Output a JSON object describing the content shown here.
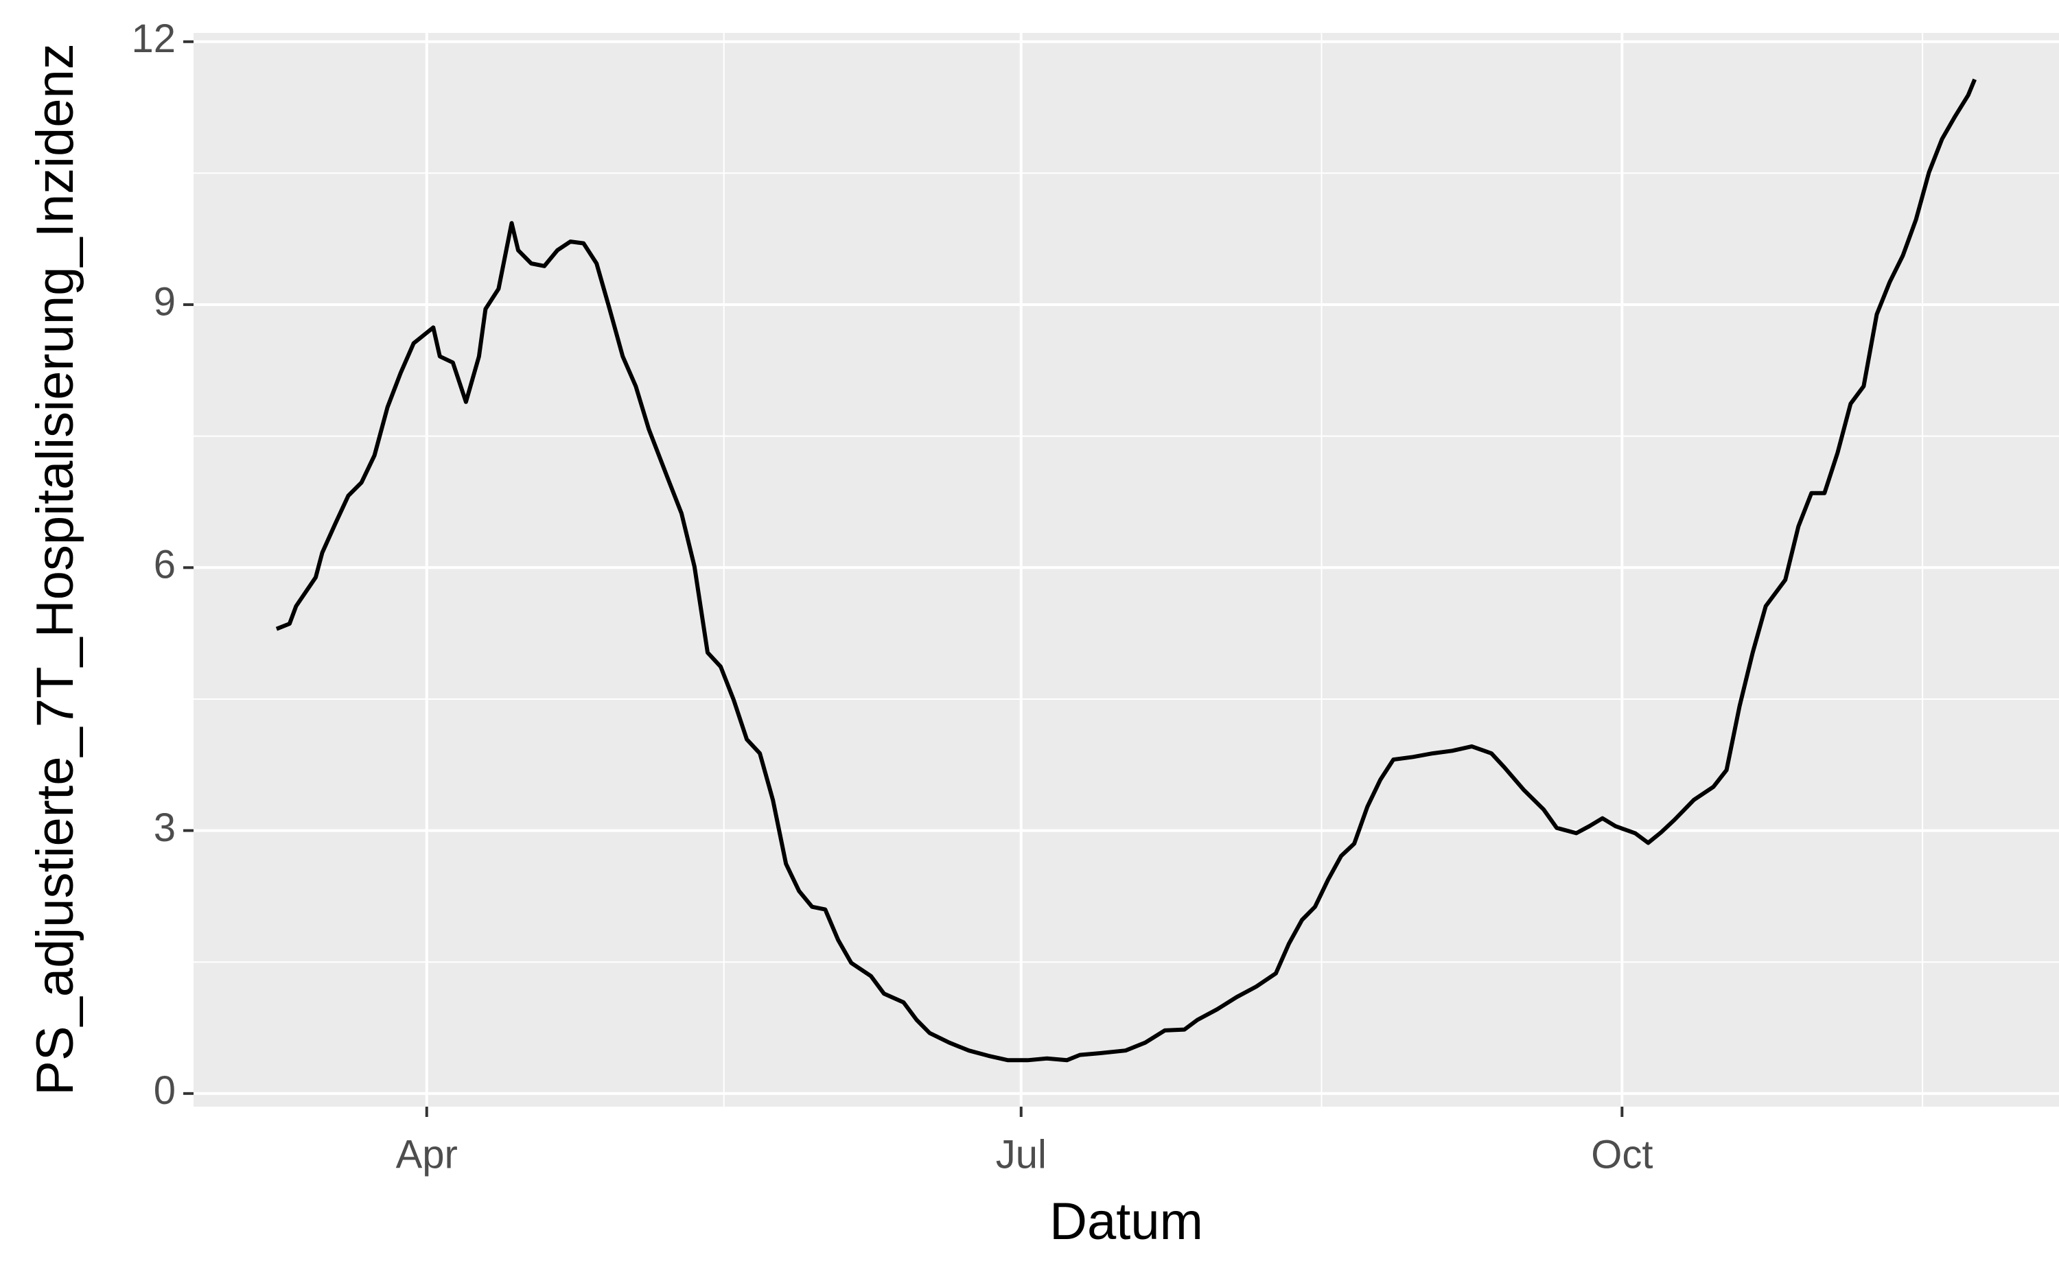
{
  "chart_data": {
    "type": "line",
    "x_label": "Datum",
    "y_label": "PS_adjustierte_7T_Hospitalisierung_Inzidenz",
    "x": [
      68,
      70,
      71,
      74,
      75,
      77,
      79,
      81,
      83,
      85,
      87,
      89,
      92,
      93,
      95,
      97,
      99,
      100,
      102,
      104,
      105,
      107,
      109,
      111,
      113,
      115,
      117,
      119,
      121,
      123,
      125,
      128,
      130,
      132,
      134,
      136,
      138,
      140,
      142,
      144,
      146,
      148,
      150,
      152,
      154,
      156,
      159,
      161,
      164,
      166,
      168,
      171,
      174,
      177,
      180,
      183,
      186,
      189,
      191,
      194,
      198,
      201,
      204,
      207,
      209,
      212,
      215,
      218,
      221,
      223,
      225,
      227,
      229,
      231,
      233,
      235,
      237,
      239,
      242,
      245,
      248,
      251,
      254,
      256,
      259,
      262,
      264,
      267,
      269,
      271,
      273,
      276,
      278,
      280,
      282,
      285,
      288,
      290,
      292,
      294,
      296,
      299,
      301,
      303,
      305,
      307,
      309,
      311,
      313,
      315,
      317,
      319,
      321,
      323,
      325,
      327,
      328
    ],
    "series": [
      {
        "name": "PS_adjustierte_7T_Hospitalisierung_Inzidenz",
        "color": "#000000",
        "values": [
          5.3,
          5.36,
          5.56,
          5.89,
          6.17,
          6.5,
          6.82,
          6.97,
          7.28,
          7.83,
          8.22,
          8.56,
          8.74,
          8.41,
          8.34,
          7.89,
          8.41,
          8.95,
          9.18,
          9.93,
          9.62,
          9.47,
          9.44,
          9.62,
          9.72,
          9.7,
          9.47,
          8.95,
          8.41,
          8.07,
          7.58,
          7.0,
          6.62,
          6.01,
          5.03,
          4.87,
          4.49,
          4.04,
          3.88,
          3.35,
          2.62,
          2.31,
          2.13,
          2.1,
          1.75,
          1.49,
          1.34,
          1.14,
          1.04,
          0.84,
          0.69,
          0.58,
          0.49,
          0.43,
          0.38,
          0.38,
          0.4,
          0.38,
          0.44,
          0.46,
          0.49,
          0.58,
          0.72,
          0.73,
          0.84,
          0.96,
          1.1,
          1.22,
          1.37,
          1.71,
          1.98,
          2.13,
          2.44,
          2.71,
          2.85,
          3.27,
          3.58,
          3.81,
          3.84,
          3.88,
          3.91,
          3.96,
          3.88,
          3.72,
          3.46,
          3.24,
          3.03,
          2.97,
          3.05,
          3.14,
          3.05,
          2.97,
          2.86,
          2.98,
          3.12,
          3.35,
          3.5,
          3.69,
          4.42,
          5.03,
          5.56,
          5.86,
          6.47,
          6.85,
          6.85,
          7.31,
          7.87,
          8.07,
          8.89,
          9.26,
          9.56,
          9.97,
          10.51,
          10.89,
          11.15,
          11.39,
          11.57
        ]
      }
    ],
    "xlim": [
      55.3,
      340.9
    ],
    "xticks": [
      {
        "value": 91,
        "label": "Apr"
      },
      {
        "value": 182,
        "label": "Jul"
      },
      {
        "value": 274,
        "label": "Oct"
      }
    ],
    "ylim": [
      -0.15,
      12.1
    ],
    "yticks": [
      0,
      3,
      6,
      9,
      12
    ],
    "grid": true,
    "panel_color": "#EBEBEB"
  }
}
